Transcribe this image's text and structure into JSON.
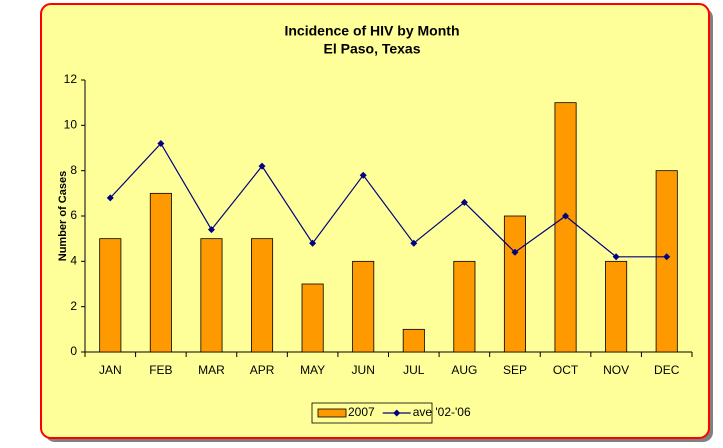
{
  "chart_data": {
    "type": "bar",
    "title": "Incidence of HIV by Month",
    "subtitle": "El Paso, Texas",
    "y_label": "Number of Cases",
    "categories": [
      "JAN",
      "FEB",
      "MAR",
      "APR",
      "MAY",
      "JUN",
      "JUL",
      "AUG",
      "SEP",
      "OCT",
      "NOV",
      "DEC"
    ],
    "series": [
      {
        "name": "2007",
        "type": "bar",
        "color": "#ff9900",
        "values": [
          5,
          7,
          5,
          5,
          3,
          4,
          1,
          4,
          6,
          11,
          4,
          8
        ]
      },
      {
        "name": "ave '02-'06",
        "type": "line",
        "color": "#000080",
        "values": [
          6.8,
          9.2,
          5.4,
          8.2,
          4.8,
          7.8,
          4.8,
          6.6,
          4.4,
          6.0,
          4.2,
          4.2
        ]
      }
    ],
    "ylim": [
      0,
      12
    ],
    "yticks": [
      0,
      2,
      4,
      6,
      8,
      10,
      12
    ],
    "grid": false,
    "legend": "bottom"
  }
}
